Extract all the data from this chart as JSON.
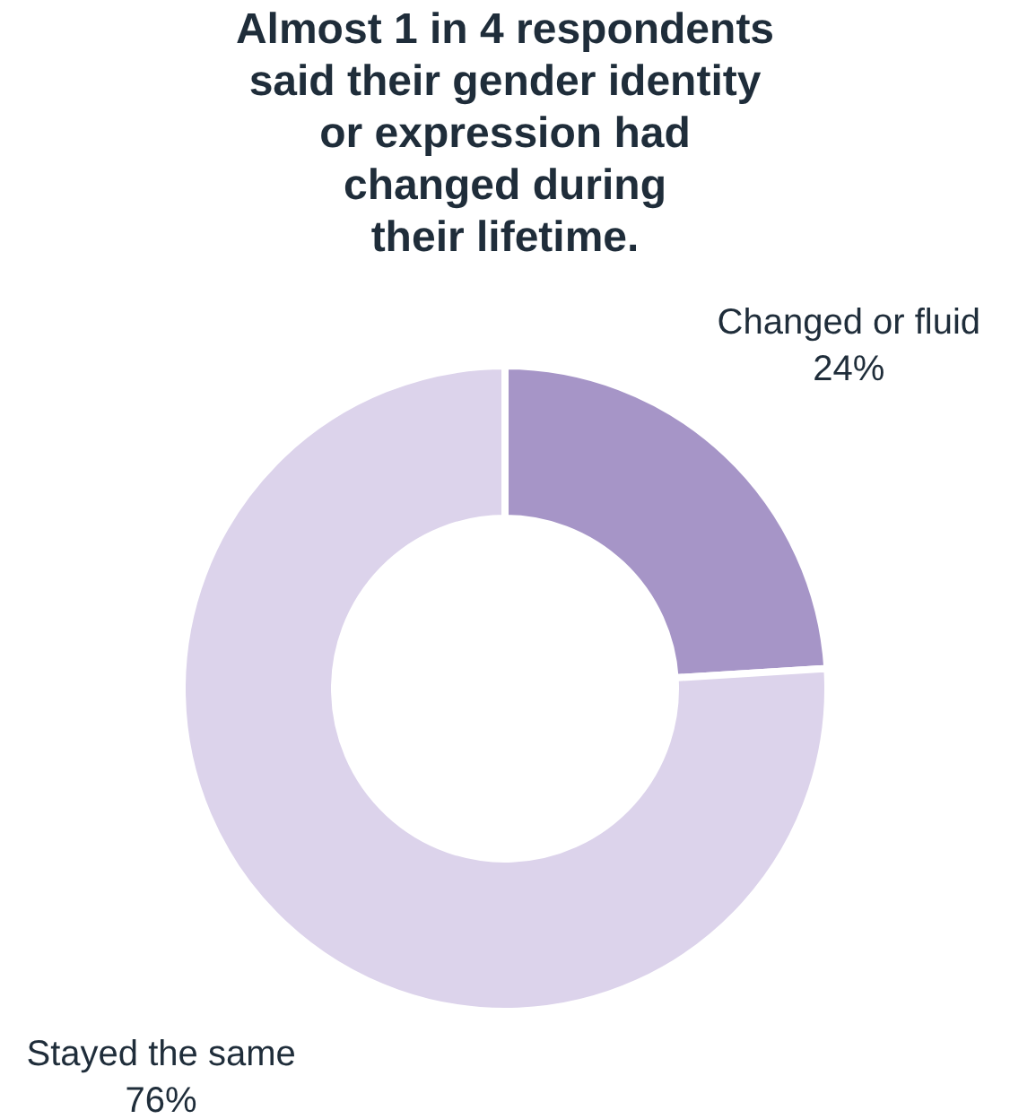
{
  "chart_data": {
    "type": "donut",
    "title": "Almost 1 in 4 respondents\nsaid their gender identity\nor expression had\nchanged during\ntheir lifetime.",
    "categories": [
      "Changed or fluid",
      "Stayed the same"
    ],
    "values": [
      24,
      76
    ],
    "colors": [
      "#a695c7",
      "#dcd3eb"
    ],
    "value_labels": [
      "24%",
      "76%"
    ],
    "legend": false
  }
}
